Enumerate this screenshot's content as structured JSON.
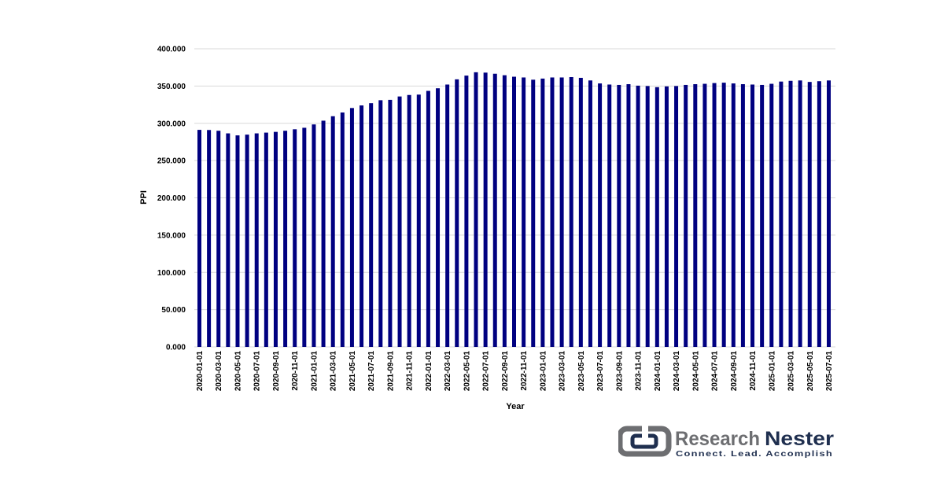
{
  "chart_data": {
    "type": "bar",
    "xlabel": "Year",
    "ylabel": "PPI",
    "ylim": [
      0,
      400
    ],
    "y_ticks": [
      "0.000",
      "50.000",
      "100.000",
      "150.000",
      "200.000",
      "250.000",
      "300.000",
      "350.000",
      "400.000"
    ],
    "grid": true,
    "bar_color": "#000080",
    "categories": [
      "2020-01-01",
      "2020-02-01",
      "2020-03-01",
      "2020-04-01",
      "2020-05-01",
      "2020-06-01",
      "2020-07-01",
      "2020-08-01",
      "2020-09-01",
      "2020-10-01",
      "2020-11-01",
      "2020-12-01",
      "2021-01-01",
      "2021-02-01",
      "2021-03-01",
      "2021-04-01",
      "2021-05-01",
      "2021-06-01",
      "2021-07-01",
      "2021-08-01",
      "2021-09-01",
      "2021-10-01",
      "2021-11-01",
      "2021-12-01",
      "2022-01-01",
      "2022-02-01",
      "2022-03-01",
      "2022-04-01",
      "2022-05-01",
      "2022-06-01",
      "2022-07-01",
      "2022-08-01",
      "2022-09-01",
      "2022-10-01",
      "2022-11-01",
      "2022-12-01",
      "2023-01-01",
      "2023-02-01",
      "2023-03-01",
      "2023-04-01",
      "2023-05-01",
      "2023-06-01",
      "2023-07-01",
      "2023-08-01",
      "2023-09-01",
      "2023-10-01",
      "2023-11-01",
      "2023-12-01",
      "2024-01-01",
      "2024-02-01",
      "2024-03-01",
      "2024-04-01",
      "2024-05-01",
      "2024-06-01",
      "2024-07-01",
      "2024-08-01",
      "2024-09-01",
      "2024-10-01",
      "2024-11-01",
      "2024-12-01",
      "2025-01-01",
      "2025-02-01",
      "2025-03-01",
      "2025-04-01",
      "2025-05-01",
      "2025-06-01",
      "2025-07-01"
    ],
    "values": [
      291.2,
      291.0,
      290.0,
      286.5,
      283.8,
      284.8,
      286.5,
      287.5,
      288.5,
      290.0,
      292.0,
      294.0,
      298.5,
      303.5,
      309.5,
      314.5,
      320.5,
      324.0,
      327.0,
      331.0,
      331.5,
      336.0,
      338.0,
      338.5,
      343.5,
      347.0,
      352.0,
      359.0,
      364.0,
      368.5,
      368.0,
      366.5,
      364.5,
      362.5,
      361.5,
      358.5,
      360.0,
      361.5,
      361.5,
      362.0,
      361.0,
      357.5,
      353.5,
      352.0,
      351.5,
      352.5,
      350.5,
      350.0,
      348.5,
      349.5,
      350.0,
      351.5,
      352.5,
      353.0,
      354.0,
      354.5,
      353.5,
      352.5,
      352.0,
      351.5,
      353.0,
      356.0,
      357.0,
      357.5,
      355.5,
      356.5,
      357.5
    ],
    "x_tick_every": 2
  },
  "logo": {
    "name_part1": "Research",
    "name_part2": "Nester",
    "tagline": "Connect. Lead. Accomplish",
    "color_gray": "#6d6e71",
    "color_navy": "#1f2f4f"
  }
}
